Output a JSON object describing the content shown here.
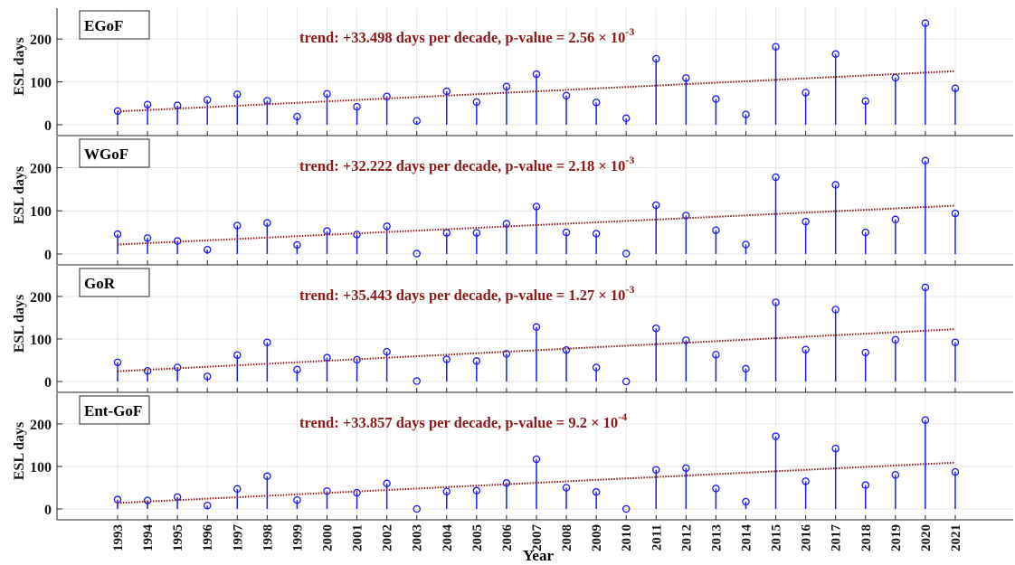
{
  "figure": {
    "xlabel": "Year",
    "colors": {
      "stem": "#1a1aff",
      "trend": "#8b1a1a",
      "grid": "#e6e6e6",
      "axis": "#262626",
      "text": "#1a1a1a"
    }
  },
  "chart_data": [
    {
      "type": "stem",
      "region_label": "EGoF",
      "ylabel": "ESL days",
      "annotation": {
        "prefix": "trend: +33.498 days per decade, p-value = 2.56 × 10",
        "exponent": "-3"
      },
      "ylim": [
        0,
        270
      ],
      "yticks": [
        0,
        100,
        200
      ],
      "x": [
        1993,
        1994,
        1995,
        1996,
        1997,
        1998,
        1999,
        2000,
        2001,
        2002,
        2003,
        2004,
        2005,
        2006,
        2007,
        2008,
        2009,
        2010,
        2011,
        2012,
        2013,
        2014,
        2015,
        2016,
        2017,
        2018,
        2019,
        2020,
        2021
      ],
      "y": [
        32,
        47,
        45,
        58,
        71,
        56,
        19,
        72,
        42,
        66,
        9,
        78,
        53,
        89,
        118,
        68,
        52,
        15,
        154,
        109,
        60,
        24,
        182,
        75,
        165,
        55,
        110,
        237,
        85
      ],
      "trend": {
        "start": 31,
        "end": 125
      }
    },
    {
      "type": "stem",
      "region_label": "WGoF",
      "ylabel": "ESL days",
      "annotation": {
        "prefix": "trend: +32.222 days per decade, p-value = 2.18 × 10",
        "exponent": "-3"
      },
      "ylim": [
        0,
        270
      ],
      "yticks": [
        0,
        100,
        200
      ],
      "x": [
        1993,
        1994,
        1995,
        1996,
        1997,
        1998,
        1999,
        2000,
        2001,
        2002,
        2003,
        2004,
        2005,
        2006,
        2007,
        2008,
        2009,
        2010,
        2011,
        2012,
        2013,
        2014,
        2015,
        2016,
        2017,
        2018,
        2019,
        2020,
        2021
      ],
      "y": [
        46,
        37,
        30,
        10,
        66,
        72,
        21,
        53,
        45,
        64,
        1,
        49,
        49,
        70,
        110,
        50,
        47,
        1,
        113,
        89,
        55,
        22,
        178,
        75,
        160,
        50,
        80,
        216,
        94
      ],
      "trend": {
        "start": 22,
        "end": 112
      }
    },
    {
      "type": "stem",
      "region_label": "GoR",
      "ylabel": "ESL days",
      "annotation": {
        "prefix": "trend: +35.443 days per decade, p-value = 1.27 × 10",
        "exponent": "-3"
      },
      "ylim": [
        0,
        270
      ],
      "yticks": [
        0,
        100,
        200
      ],
      "x": [
        1993,
        1994,
        1995,
        1996,
        1997,
        1998,
        1999,
        2000,
        2001,
        2002,
        2003,
        2004,
        2005,
        2006,
        2007,
        2008,
        2009,
        2010,
        2011,
        2012,
        2013,
        2014,
        2015,
        2016,
        2017,
        2018,
        2019,
        2020,
        2021
      ],
      "y": [
        45,
        25,
        33,
        12,
        62,
        92,
        28,
        56,
        51,
        70,
        1,
        52,
        48,
        65,
        128,
        74,
        33,
        0,
        125,
        97,
        63,
        30,
        186,
        75,
        169,
        68,
        98,
        221,
        92
      ],
      "trend": {
        "start": 24,
        "end": 123
      }
    },
    {
      "type": "stem",
      "region_label": "Ent-GoF",
      "ylabel": "ESL days",
      "annotation": {
        "prefix": "trend: +33.857 days per decade, p-value = 9.2 × 10",
        "exponent": "-4"
      },
      "ylim": [
        0,
        270
      ],
      "yticks": [
        0,
        100,
        200
      ],
      "x": [
        1993,
        1994,
        1995,
        1996,
        1997,
        1998,
        1999,
        2000,
        2001,
        2002,
        2003,
        2004,
        2005,
        2006,
        2007,
        2008,
        2009,
        2010,
        2011,
        2012,
        2013,
        2014,
        2015,
        2016,
        2017,
        2018,
        2019,
        2020,
        2021
      ],
      "y": [
        22,
        20,
        28,
        8,
        47,
        77,
        21,
        42,
        38,
        60,
        0,
        41,
        43,
        61,
        117,
        50,
        40,
        0,
        92,
        96,
        48,
        17,
        171,
        65,
        142,
        56,
        80,
        209,
        87
      ],
      "trend": {
        "start": 14,
        "end": 109
      }
    }
  ]
}
